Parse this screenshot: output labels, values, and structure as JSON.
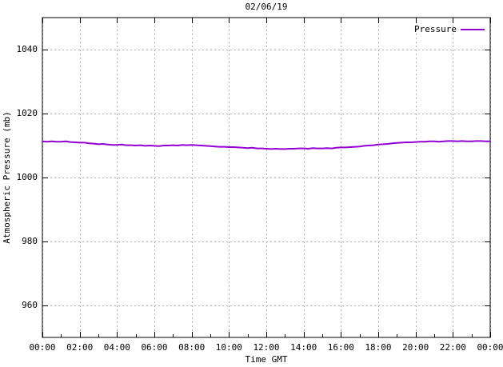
{
  "chart_data": {
    "type": "line",
    "title": "02/06/19",
    "xlabel": "Time GMT",
    "ylabel": "Atmospheric Pressure (mb)",
    "xlim_hours": [
      0,
      24
    ],
    "ylim": [
      950,
      1050
    ],
    "grid": true,
    "background_color": "#ffffff",
    "axis_color": "#000000",
    "grid_color": "#b0b0b0",
    "x_ticks": {
      "values": [
        0,
        2,
        4,
        6,
        8,
        10,
        12,
        14,
        16,
        18,
        20,
        22,
        24
      ],
      "labels": [
        "00:00",
        "02:00",
        "04:00",
        "06:00",
        "08:00",
        "10:00",
        "12:00",
        "14:00",
        "16:00",
        "18:00",
        "20:00",
        "22:00",
        "00:00"
      ],
      "minor_interval_hours": 1
    },
    "y_ticks": {
      "values": [
        960,
        980,
        1000,
        1020,
        1040
      ],
      "labels": [
        "960",
        "980",
        "1000",
        "1020",
        "1040"
      ]
    },
    "legend": {
      "position": "top-right",
      "entries": [
        {
          "label": "Pressure",
          "color": "#9400d3"
        }
      ]
    },
    "series": [
      {
        "name": "Pressure",
        "color": "#9400d3",
        "x_hours": [
          0,
          0.25,
          0.5,
          0.75,
          1,
          1.25,
          1.5,
          1.75,
          2,
          2.25,
          2.5,
          2.75,
          3,
          3.25,
          3.5,
          3.75,
          4,
          4.25,
          4.5,
          4.75,
          5,
          5.25,
          5.5,
          5.75,
          6,
          6.25,
          6.5,
          6.75,
          7,
          7.25,
          7.5,
          7.75,
          8,
          8.25,
          8.5,
          8.75,
          9,
          9.25,
          9.5,
          9.75,
          10,
          10.25,
          10.5,
          10.75,
          11,
          11.25,
          11.5,
          11.75,
          12,
          12.25,
          12.5,
          12.75,
          13,
          13.25,
          13.5,
          13.75,
          14,
          14.25,
          14.5,
          14.75,
          15,
          15.25,
          15.5,
          15.75,
          16,
          16.25,
          16.5,
          16.75,
          17,
          17.25,
          17.5,
          17.75,
          18,
          18.25,
          18.5,
          18.75,
          19,
          19.25,
          19.5,
          19.75,
          20,
          20.25,
          20.5,
          20.75,
          21,
          21.25,
          21.5,
          21.75,
          22,
          22.25,
          22.5,
          22.75,
          23,
          23.25,
          23.5,
          23.75,
          24
        ],
        "y_mb": [
          1011.3,
          1011.2,
          1011.3,
          1011.2,
          1011.2,
          1011.3,
          1011.1,
          1011.0,
          1010.9,
          1010.9,
          1010.7,
          1010.6,
          1010.4,
          1010.5,
          1010.3,
          1010.2,
          1010.2,
          1010.3,
          1010.1,
          1010.1,
          1010.0,
          1010.1,
          1009.9,
          1010.0,
          1009.9,
          1009.8,
          1010.0,
          1010.0,
          1010.1,
          1010.0,
          1010.2,
          1010.1,
          1010.2,
          1010.1,
          1010.0,
          1009.9,
          1009.8,
          1009.7,
          1009.6,
          1009.6,
          1009.5,
          1009.5,
          1009.4,
          1009.3,
          1009.2,
          1009.3,
          1009.1,
          1009.1,
          1009.0,
          1008.9,
          1009.0,
          1008.9,
          1008.9,
          1009.0,
          1009.0,
          1009.1,
          1009.1,
          1009.0,
          1009.2,
          1009.1,
          1009.1,
          1009.2,
          1009.1,
          1009.3,
          1009.4,
          1009.4,
          1009.5,
          1009.6,
          1009.7,
          1009.9,
          1010.0,
          1010.1,
          1010.3,
          1010.4,
          1010.5,
          1010.7,
          1010.8,
          1010.9,
          1011.0,
          1011.0,
          1011.1,
          1011.2,
          1011.2,
          1011.3,
          1011.3,
          1011.2,
          1011.3,
          1011.4,
          1011.4,
          1011.3,
          1011.4,
          1011.3,
          1011.3,
          1011.4,
          1011.4,
          1011.3,
          1011.3
        ]
      }
    ]
  }
}
